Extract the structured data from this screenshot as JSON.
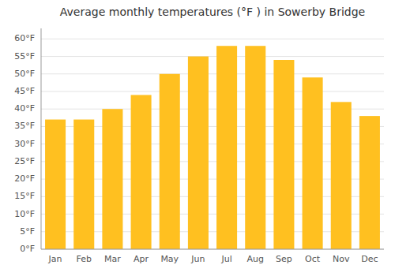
{
  "chart_data": {
    "type": "bar",
    "title": "Average monthly temperatures (°F ) in Sowerby Bridge",
    "categories": [
      "Jan",
      "Feb",
      "Mar",
      "Apr",
      "May",
      "Jun",
      "Jul",
      "Aug",
      "Sep",
      "Oct",
      "Nov",
      "Dec"
    ],
    "values": [
      37,
      37,
      40,
      44,
      50,
      55,
      58,
      58,
      54,
      49,
      42,
      38
    ],
    "color": "#FFC020",
    "ylim": [
      0,
      63
    ],
    "yticks": [
      {
        "value": 0,
        "label": "0°F"
      },
      {
        "value": 5,
        "label": "5°F"
      },
      {
        "value": 10,
        "label": "10°F"
      },
      {
        "value": 15,
        "label": "15°F"
      },
      {
        "value": 20,
        "label": "20°F"
      },
      {
        "value": 25,
        "label": "25°F"
      },
      {
        "value": 30,
        "label": "30°F"
      },
      {
        "value": 35,
        "label": "35°F"
      },
      {
        "value": 40,
        "label": "40°F"
      },
      {
        "value": 45,
        "label": "45°F"
      },
      {
        "value": 50,
        "label": "50°F"
      },
      {
        "value": 55,
        "label": "55°F"
      },
      {
        "value": 60,
        "label": "60°F"
      }
    ],
    "grid": true
  }
}
